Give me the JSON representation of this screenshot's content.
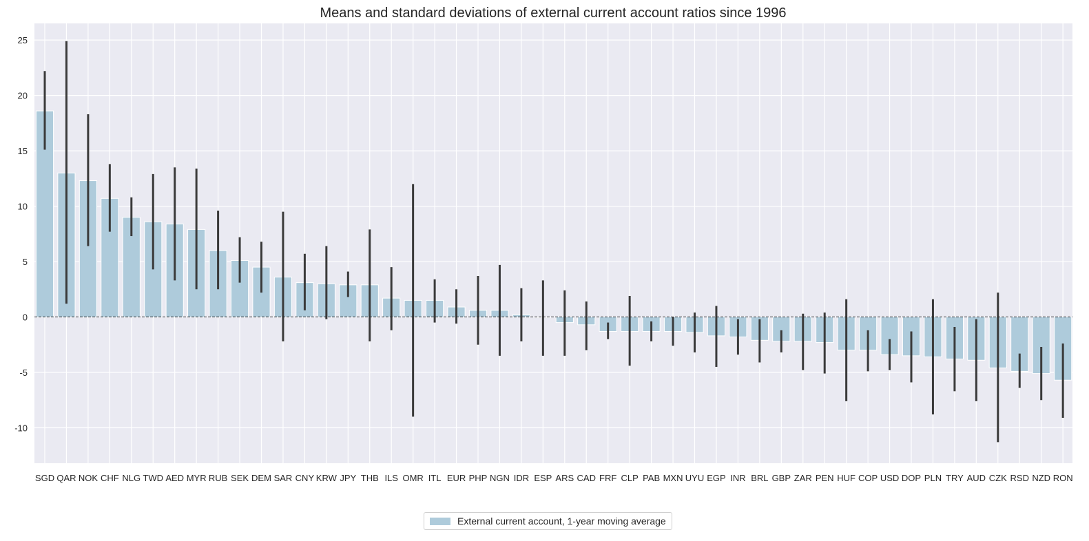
{
  "chart_data": {
    "type": "bar",
    "title": "Means and standard deviations of external current account ratios since 1996",
    "xlabel": "",
    "ylabel": "",
    "ylim": [
      -13.2,
      26.5
    ],
    "yticks": [
      -10,
      -5,
      0,
      5,
      10,
      15,
      20,
      25
    ],
    "grid": true,
    "legend_position": "bottom-center",
    "bar_color": "#aecbdb",
    "errorbar_color": "#3a3a3a",
    "zero_line": true,
    "categories": [
      "SGD",
      "QAR",
      "NOK",
      "CHF",
      "NLG",
      "TWD",
      "AED",
      "MYR",
      "RUB",
      "SEK",
      "DEM",
      "SAR",
      "CNY",
      "KRW",
      "JPY",
      "THB",
      "ILS",
      "OMR",
      "ITL",
      "EUR",
      "PHP",
      "NGN",
      "IDR",
      "ESP",
      "ARS",
      "CAD",
      "FRF",
      "CLP",
      "PAB",
      "MXN",
      "UYU",
      "EGP",
      "INR",
      "BRL",
      "GBP",
      "ZAR",
      "PEN",
      "HUF",
      "COP",
      "USD",
      "DOP",
      "PLN",
      "TRY",
      "AUD",
      "CZK",
      "RSD",
      "NZD",
      "RON"
    ],
    "series": [
      {
        "name": "External current account, 1-year moving average",
        "values": [
          18.6,
          13.0,
          12.3,
          10.7,
          9.0,
          8.6,
          8.4,
          7.9,
          6.0,
          5.1,
          4.5,
          3.6,
          3.1,
          3.0,
          2.9,
          2.9,
          1.7,
          1.5,
          1.5,
          0.9,
          0.6,
          0.6,
          0.2,
          0.0,
          -0.5,
          -0.7,
          -1.3,
          -1.3,
          -1.3,
          -1.3,
          -1.4,
          -1.7,
          -1.8,
          -2.1,
          -2.2,
          -2.2,
          -2.3,
          -3.0,
          -3.0,
          -3.4,
          -3.5,
          -3.6,
          -3.8,
          -3.9,
          -4.6,
          -4.9,
          -5.1,
          -5.7
        ],
        "error_low": [
          15.1,
          1.2,
          6.4,
          7.7,
          7.3,
          4.3,
          3.3,
          2.5,
          2.5,
          3.1,
          2.2,
          -2.2,
          0.6,
          -0.2,
          1.8,
          -2.2,
          -1.2,
          -9.0,
          -0.5,
          -0.6,
          -2.5,
          -3.5,
          -2.2,
          -3.5,
          -3.5,
          -3.0,
          -2.0,
          -4.4,
          -2.2,
          -2.6,
          -3.2,
          -4.5,
          -3.4,
          -4.1,
          -3.2,
          -4.8,
          -5.1,
          -7.6,
          -4.9,
          -4.8,
          -5.9,
          -8.8,
          -6.7,
          -7.6,
          -11.3,
          -6.4,
          -7.5,
          -9.1
        ],
        "error_high": [
          22.2,
          24.9,
          18.3,
          13.8,
          10.8,
          12.9,
          13.5,
          13.4,
          9.6,
          7.2,
          6.8,
          9.5,
          5.7,
          6.4,
          4.1,
          7.9,
          4.5,
          12.0,
          3.4,
          2.5,
          3.7,
          4.7,
          2.6,
          3.3,
          2.4,
          1.4,
          -0.5,
          1.9,
          -0.4,
          0.0,
          0.4,
          1.0,
          -0.2,
          -0.2,
          -1.2,
          0.3,
          0.4,
          1.6,
          -1.2,
          -2.0,
          -1.3,
          1.6,
          -0.9,
          -0.2,
          2.2,
          -3.3,
          -2.7,
          -2.4
        ]
      }
    ]
  }
}
